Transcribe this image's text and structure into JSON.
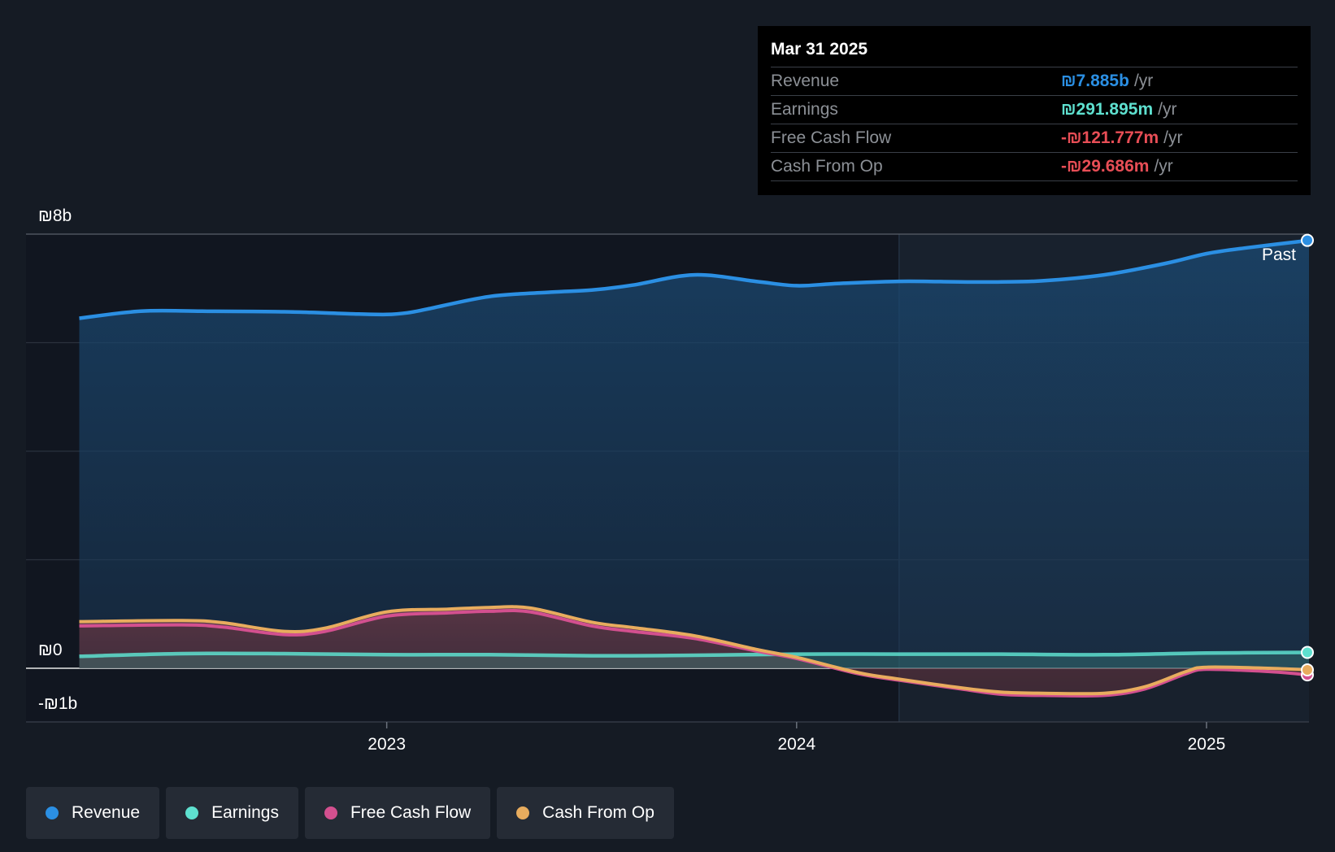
{
  "chart_data": {
    "type": "area",
    "y_unit_prefix": "₪",
    "y_tick_labels": {
      "top": "₪8b",
      "zero": "₪0",
      "bottom": "-₪1b"
    },
    "ylim": [
      -1,
      8
    ],
    "y_gridlines": [
      0,
      2,
      4,
      6,
      8
    ],
    "xlim": [
      2022.12,
      2025.25
    ],
    "x_ticks": [
      {
        "label": "2023",
        "value": 2023.0
      },
      {
        "label": "2024",
        "value": 2024.0
      },
      {
        "label": "2025",
        "value": 2025.0
      }
    ],
    "past_divider": 2024.25,
    "past_label": "Past",
    "series": [
      {
        "name": "Revenue",
        "color": "#2b8fe3",
        "x": [
          2022.25,
          2022.4,
          2022.55,
          2022.75,
          2022.92,
          2023.0,
          2023.05,
          2023.1,
          2023.25,
          2023.4,
          2023.5,
          2023.6,
          2023.75,
          2023.9,
          2024.0,
          2024.1,
          2024.25,
          2024.4,
          2024.5,
          2024.6,
          2024.75,
          2024.9,
          2025.0,
          2025.1,
          2025.25
        ],
        "values": [
          6.45,
          6.58,
          6.58,
          6.57,
          6.53,
          6.52,
          6.55,
          6.62,
          6.85,
          6.93,
          6.97,
          7.06,
          7.25,
          7.13,
          7.05,
          7.09,
          7.13,
          7.12,
          7.12,
          7.14,
          7.25,
          7.46,
          7.64,
          7.75,
          7.885
        ]
      },
      {
        "name": "Earnings",
        "color": "#5ee0cf",
        "x": [
          2022.25,
          2022.5,
          2022.75,
          2023.0,
          2023.25,
          2023.5,
          2023.75,
          2024.0,
          2024.25,
          2024.5,
          2024.75,
          2025.0,
          2025.25
        ],
        "values": [
          0.22,
          0.27,
          0.27,
          0.25,
          0.25,
          0.23,
          0.24,
          0.26,
          0.26,
          0.26,
          0.25,
          0.28,
          0.292
        ]
      },
      {
        "name": "Free Cash Flow",
        "color": "#d3508f",
        "x": [
          2022.25,
          2022.5,
          2022.6,
          2022.75,
          2022.85,
          2023.0,
          2023.15,
          2023.25,
          2023.35,
          2023.5,
          2023.6,
          2023.75,
          2023.9,
          2024.0,
          2024.15,
          2024.25,
          2024.4,
          2024.5,
          2024.6,
          2024.75,
          2024.85,
          2024.95,
          2025.0,
          2025.15,
          2025.25
        ],
        "values": [
          0.78,
          0.8,
          0.76,
          0.62,
          0.68,
          0.96,
          1.02,
          1.05,
          1.04,
          0.78,
          0.68,
          0.55,
          0.32,
          0.18,
          -0.1,
          -0.22,
          -0.38,
          -0.48,
          -0.5,
          -0.5,
          -0.38,
          -0.1,
          -0.02,
          -0.06,
          -0.122
        ]
      },
      {
        "name": "Cash From Op",
        "color": "#e8ac5e",
        "x": [
          2022.25,
          2022.5,
          2022.6,
          2022.75,
          2022.85,
          2023.0,
          2023.15,
          2023.25,
          2023.35,
          2023.5,
          2023.6,
          2023.75,
          2023.9,
          2024.0,
          2024.15,
          2024.25,
          2024.4,
          2024.5,
          2024.6,
          2024.75,
          2024.85,
          2024.95,
          2025.0,
          2025.15,
          2025.25
        ],
        "values": [
          0.86,
          0.88,
          0.84,
          0.68,
          0.74,
          1.04,
          1.09,
          1.12,
          1.11,
          0.85,
          0.75,
          0.6,
          0.35,
          0.2,
          -0.08,
          -0.2,
          -0.36,
          -0.44,
          -0.46,
          -0.46,
          -0.34,
          -0.06,
          0.02,
          0.0,
          -0.03
        ]
      }
    ]
  },
  "tooltip": {
    "date": "Mar 31 2025",
    "rows": [
      {
        "label": "Revenue",
        "value": "₪7.885b",
        "unit": "/yr",
        "color": "#2b8fe3"
      },
      {
        "label": "Earnings",
        "value": "₪291.895m",
        "unit": "/yr",
        "color": "#5ee0cf"
      },
      {
        "label": "Free Cash Flow",
        "value": "-₪121.777m",
        "unit": "/yr",
        "color": "#e84e56"
      },
      {
        "label": "Cash From Op",
        "value": "-₪29.686m",
        "unit": "/yr",
        "color": "#e84e56"
      }
    ]
  },
  "legend": [
    {
      "label": "Revenue",
      "color": "#2b8fe3"
    },
    {
      "label": "Earnings",
      "color": "#5ee0cf"
    },
    {
      "label": "Free Cash Flow",
      "color": "#d3508f"
    },
    {
      "label": "Cash From Op",
      "color": "#e8ac5e"
    }
  ]
}
